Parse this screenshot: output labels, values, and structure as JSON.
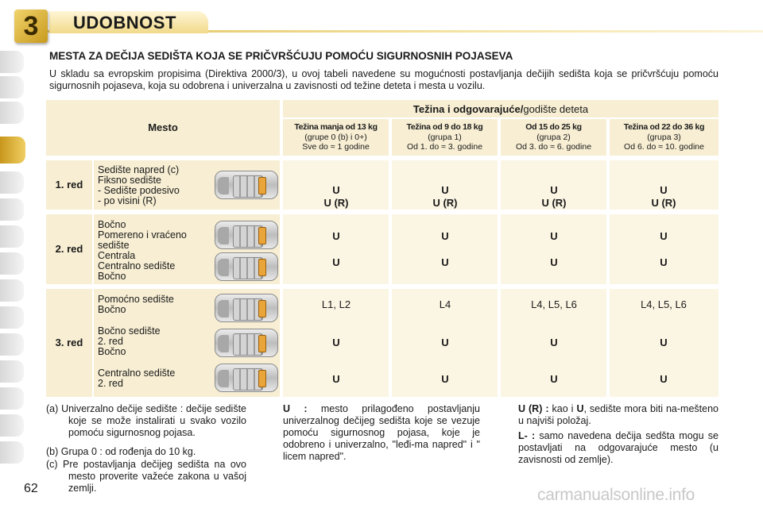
{
  "header": {
    "chapter": "3",
    "title": "UDOBNOST"
  },
  "section_title": "MESTA ZA DEČIJA SEDIŠTA KOJA SE PRIČVRŠĆUJU POMOĆU SIGURNOSNIH POJASEVA",
  "intro": "U skladu sa evropskim propisima (Direktiva 2000/3), u ovoj tabeli navedene su mogućnosti postavljanja dečijih sedišta koja se pričvršćuju pomoću sigurnosnih pojaseva, koja su odobrena i univerzalna u zavisnosti od težine deteta i mesta u vozilu.",
  "table": {
    "mesto_label": "Mesto",
    "weight_header_bold": "Težina i odgovarajuće/",
    "weight_header_normal": "godište deteta",
    "columns": [
      {
        "title": "Težina manja od 13 kg",
        "group": "(grupe 0 (b) i 0+)",
        "age": "Sve do ≈ 1 godine"
      },
      {
        "title": "Težina od 9 do 18 kg",
        "group": "(grupa 1)",
        "age": "Od 1. do ≈ 3. godine"
      },
      {
        "title": "Od 15 do 25 kg",
        "group": "(grupa 2)",
        "age": "Od 3. do ≈ 6. godine"
      },
      {
        "title": "Težina od 22 do 36 kg",
        "group": "(grupa 3)",
        "age": "Od 6. do ≈ 10. godine"
      }
    ],
    "rows": [
      {
        "label": "1. red",
        "seat_text": "Sedište napred (c)\nFiksno sedište\n- Sedište podesivo\n- po visini (R)",
        "values": [
          "U\nU (R)",
          "U\nU (R)",
          "U\nU (R)",
          "U\nU (R)"
        ]
      },
      {
        "label": "2. red",
        "seat_text": "Bočno\nPomereno i vraćeno\nsedište\nCentrala\nCentralno sedište\nBočno",
        "lines": [
          [
            "U",
            "U",
            "U",
            "U"
          ],
          [
            "U",
            "U",
            "U",
            "U"
          ]
        ]
      },
      {
        "label": "3. red",
        "seat_groups": [
          "Pomoćno sedište\nBočno",
          "Bočno sedište\n2. red\nBočno",
          "Centralno sedište\n2. red"
        ],
        "lines": [
          [
            "L1, L2",
            "L4",
            "L4, L5, L6",
            "L4, L5, L6"
          ],
          [
            "U",
            "U",
            "U",
            "U"
          ],
          [
            "U",
            "U",
            "U",
            "U"
          ]
        ]
      }
    ],
    "car_icon": "car-seat-layout-icon"
  },
  "footnotes": {
    "a": "(a)  Univerzalno dečije sedište : dečije sedište koje se može instalirati u svako vozilo pomoću sigurnosnog pojasa.",
    "b": "(b)  Grupa 0 : od rođenja do 10 kg.",
    "c": "(c)  Pre postavljanja dečijeg sedišta na ovo mesto proverite važeće zakona u vašoj zemlji.",
    "u_term": "U :",
    "u_text": " mesto prilagođeno postavljanju univerzalnog dečijeg sedišta koje se vezuje pomoću sigurnosnog pojasa, koje je odobreno i univerzalno, \"leđi-ma napred\" i \" licem napred\".",
    "ur_term": "U (R) :",
    "ur_text": " kao i ",
    "ur_term2": "U",
    "ur_text2": ", sedište mora biti na-mešteno u najviši položaj.",
    "l_term": "L- :",
    "l_text": " samo navedena dečija sedšta mogu se postavljati na odgovarajuće mesto (u zavisnosti od zemlje)."
  },
  "page_number": "62",
  "watermark": "carmanualsonline.info"
}
